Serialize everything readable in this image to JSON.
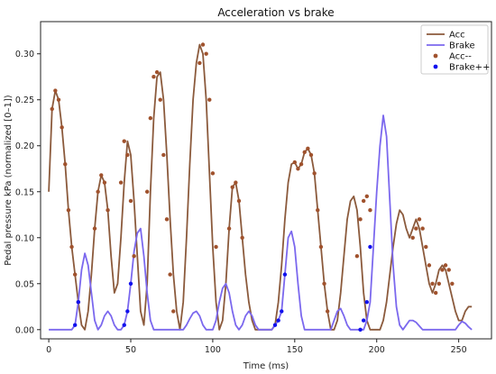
{
  "chart_data": {
    "type": "line",
    "title": "Acceleration vs brake",
    "xlabel": "Time (ms)",
    "ylabel": "Pedal pressure kPa (normalized [0–1])",
    "xlim": [
      -5,
      270
    ],
    "ylim": [
      -0.01,
      0.335
    ],
    "xticks": [
      0,
      50,
      100,
      150,
      200,
      250
    ],
    "yticks": [
      0.0,
      0.05,
      0.1,
      0.15,
      0.2,
      0.25,
      0.3
    ],
    "ytick_labels": [
      "0.00",
      "0.05",
      "0.10",
      "0.15",
      "0.20",
      "0.25",
      "0.30"
    ],
    "legend_position": "top-right",
    "grid": false,
    "series": [
      {
        "name": "Acc",
        "kind": "line",
        "color": "#8b5a3c",
        "x": [
          0,
          2,
          4,
          6,
          8,
          10,
          12,
          14,
          16,
          18,
          20,
          22,
          24,
          26,
          28,
          30,
          32,
          34,
          36,
          38,
          40,
          42,
          44,
          46,
          48,
          50,
          52,
          54,
          56,
          58,
          60,
          62,
          64,
          66,
          68,
          70,
          72,
          74,
          76,
          78,
          80,
          82,
          84,
          86,
          88,
          90,
          92,
          94,
          96,
          98,
          100,
          102,
          104,
          106,
          108,
          110,
          112,
          114,
          116,
          118,
          120,
          122,
          124,
          126,
          128,
          130,
          132,
          134,
          136,
          138,
          140,
          142,
          144,
          146,
          148,
          150,
          152,
          154,
          156,
          158,
          160,
          162,
          164,
          166,
          168,
          170,
          172,
          174,
          176,
          178,
          180,
          182,
          184,
          186,
          188,
          190,
          192,
          194,
          196,
          198,
          200,
          202,
          204,
          206,
          208,
          210,
          212,
          214,
          216,
          218,
          220,
          222,
          224,
          226,
          228,
          230,
          232,
          234,
          236,
          238,
          240,
          242,
          244,
          246,
          248,
          250,
          252,
          254,
          256,
          258
        ],
        "values": [
          0.15,
          0.24,
          0.26,
          0.25,
          0.22,
          0.18,
          0.13,
          0.09,
          0.06,
          0.03,
          0.005,
          0.0,
          0.02,
          0.06,
          0.11,
          0.15,
          0.168,
          0.16,
          0.13,
          0.08,
          0.04,
          0.05,
          0.1,
          0.16,
          0.205,
          0.19,
          0.14,
          0.08,
          0.02,
          0.005,
          0.05,
          0.15,
          0.23,
          0.275,
          0.28,
          0.25,
          0.19,
          0.12,
          0.06,
          0.02,
          0.0,
          0.03,
          0.1,
          0.18,
          0.25,
          0.29,
          0.31,
          0.3,
          0.25,
          0.17,
          0.09,
          0.03,
          0.0,
          0.01,
          0.05,
          0.11,
          0.155,
          0.16,
          0.14,
          0.1,
          0.06,
          0.03,
          0.01,
          0.0,
          0.0,
          0.0,
          0.0,
          0.0,
          0.0,
          0.005,
          0.03,
          0.07,
          0.12,
          0.16,
          0.18,
          0.182,
          0.175,
          0.18,
          0.193,
          0.197,
          0.19,
          0.17,
          0.13,
          0.09,
          0.05,
          0.02,
          0.0,
          0.0,
          0.01,
          0.04,
          0.08,
          0.12,
          0.14,
          0.145,
          0.13,
          0.09,
          0.04,
          0.01,
          0.0,
          0.0,
          0.0,
          0.0,
          0.01,
          0.03,
          0.06,
          0.09,
          0.115,
          0.13,
          0.125,
          0.11,
          0.1,
          0.11,
          0.12,
          0.11,
          0.09,
          0.07,
          0.05,
          0.04,
          0.05,
          0.065,
          0.07,
          0.065,
          0.05,
          0.035,
          0.02,
          0.01,
          0.01,
          0.02,
          0.025,
          0.025
        ]
      },
      {
        "name": "Brake",
        "kind": "line",
        "color": "#7b68ee",
        "x": [
          0,
          10,
          14,
          16,
          18,
          20,
          22,
          24,
          26,
          28,
          30,
          32,
          34,
          36,
          38,
          40,
          42,
          44,
          46,
          48,
          50,
          52,
          54,
          56,
          58,
          60,
          62,
          64,
          66,
          68,
          70,
          72,
          74,
          76,
          78,
          80,
          82,
          84,
          86,
          88,
          90,
          92,
          94,
          96,
          98,
          100,
          102,
          104,
          106,
          108,
          110,
          112,
          114,
          116,
          118,
          120,
          122,
          124,
          126,
          128,
          130,
          132,
          134,
          136,
          138,
          140,
          142,
          144,
          146,
          148,
          150,
          152,
          154,
          156,
          158,
          160,
          162,
          164,
          166,
          168,
          170,
          172,
          174,
          176,
          178,
          180,
          182,
          184,
          186,
          188,
          190,
          192,
          194,
          196,
          198,
          200,
          202,
          204,
          206,
          208,
          210,
          212,
          214,
          216,
          218,
          220,
          222,
          224,
          226,
          228,
          230,
          232,
          234,
          236,
          238,
          240,
          242,
          244,
          246,
          248,
          250,
          252,
          254,
          256,
          258
        ],
        "values": [
          0,
          0,
          0,
          0.005,
          0.03,
          0.065,
          0.083,
          0.07,
          0.04,
          0.01,
          0,
          0.005,
          0.015,
          0.02,
          0.015,
          0.005,
          0,
          0,
          0.005,
          0.02,
          0.05,
          0.085,
          0.105,
          0.11,
          0.08,
          0.04,
          0.01,
          0,
          0,
          0,
          0,
          0,
          0,
          0,
          0,
          0,
          0,
          0.005,
          0.012,
          0.018,
          0.02,
          0.015,
          0.005,
          0,
          0,
          0,
          0.01,
          0.03,
          0.045,
          0.05,
          0.04,
          0.02,
          0.005,
          0,
          0.005,
          0.015,
          0.02,
          0.015,
          0.005,
          0,
          0,
          0,
          0,
          0,
          0.005,
          0.01,
          0.02,
          0.06,
          0.1,
          0.107,
          0.09,
          0.05,
          0.015,
          0,
          0,
          0,
          0,
          0,
          0,
          0,
          0,
          0,
          0.01,
          0.02,
          0.023,
          0.015,
          0.005,
          0,
          0,
          0,
          0,
          0,
          0.01,
          0.03,
          0.09,
          0.15,
          0.2,
          0.233,
          0.21,
          0.14,
          0.07,
          0.025,
          0.005,
          0,
          0.005,
          0.01,
          0.01,
          0.008,
          0.004,
          0,
          0,
          0,
          0,
          0,
          0,
          0,
          0,
          0,
          0,
          0,
          0.005,
          0.009,
          0.007,
          0.003,
          0
        ]
      },
      {
        "name": "Acc--",
        "kind": "scatter",
        "color": "#a0522d",
        "x": [
          2,
          4,
          6,
          8,
          10,
          12,
          14,
          16,
          18,
          28,
          30,
          32,
          34,
          36,
          44,
          46,
          48,
          50,
          52,
          60,
          62,
          64,
          66,
          68,
          70,
          72,
          74,
          76,
          92,
          94,
          96,
          98,
          100,
          102,
          110,
          112,
          114,
          116,
          118,
          150,
          152,
          154,
          156,
          158,
          160,
          162,
          164,
          166,
          168,
          170,
          188,
          190,
          192,
          194,
          196,
          222,
          224,
          226,
          228,
          230,
          232,
          234,
          236,
          238,
          240,
          242,
          244,
          246
        ],
        "values": [
          0.24,
          0.26,
          0.25,
          0.22,
          0.18,
          0.13,
          0.09,
          0.06,
          0.03,
          0.11,
          0.15,
          0.168,
          0.16,
          0.13,
          0.16,
          0.205,
          0.19,
          0.14,
          0.08,
          0.15,
          0.23,
          0.275,
          0.28,
          0.25,
          0.19,
          0.12,
          0.06,
          0.02,
          0.29,
          0.31,
          0.3,
          0.25,
          0.17,
          0.09,
          0.11,
          0.155,
          0.16,
          0.14,
          0.1,
          0.182,
          0.175,
          0.18,
          0.193,
          0.197,
          0.19,
          0.17,
          0.13,
          0.09,
          0.05,
          0.02,
          0.08,
          0.12,
          0.14,
          0.145,
          0.13,
          0.1,
          0.11,
          0.12,
          0.11,
          0.09,
          0.07,
          0.05,
          0.04,
          0.05,
          0.065,
          0.07,
          0.065,
          0.05
        ]
      },
      {
        "name": "Brake++",
        "kind": "scatter",
        "color": "#1010ee",
        "x": [
          16,
          18,
          46,
          48,
          50,
          138,
          140,
          142,
          144,
          190,
          192,
          194,
          196
        ],
        "values": [
          0.005,
          0.03,
          0.005,
          0.02,
          0.05,
          0.005,
          0.01,
          0.02,
          0.06,
          0,
          0.01,
          0.03,
          0.09
        ]
      }
    ]
  }
}
